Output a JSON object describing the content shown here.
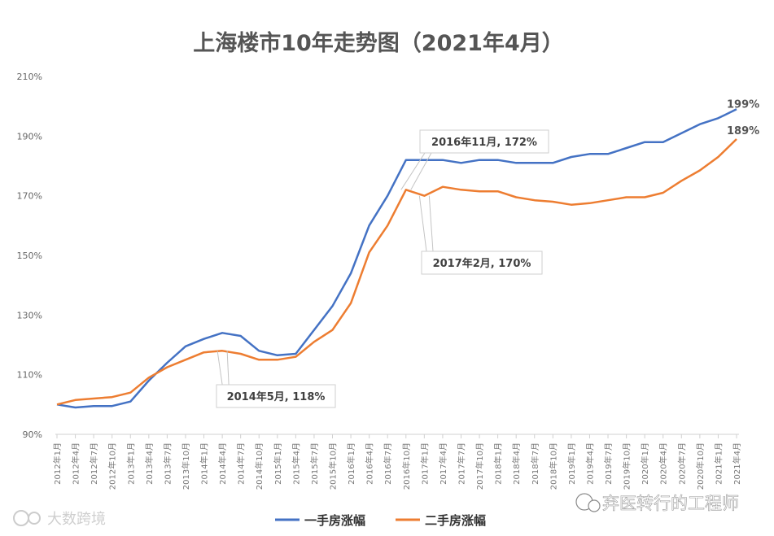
{
  "chart_data": {
    "type": "line",
    "title": "上海楼市10年走势图（2021年4月）",
    "ylim": [
      90,
      210
    ],
    "yticks": [
      "90%",
      "110%",
      "130%",
      "150%",
      "170%",
      "190%",
      "210%"
    ],
    "ytick_values": [
      90,
      110,
      130,
      150,
      170,
      190,
      210
    ],
    "x": [
      "2012年1月",
      "2012年4月",
      "2012年7月",
      "2012年10月",
      "2013年1月",
      "2013年4月",
      "2013年7月",
      "2013年10月",
      "2014年1月",
      "2014年4月",
      "2014年7月",
      "2014年10月",
      "2015年1月",
      "2015年4月",
      "2015年7月",
      "2015年10月",
      "2016年1月",
      "2016年4月",
      "2016年7月",
      "2016年10月",
      "2017年1月",
      "2017年4月",
      "2017年7月",
      "2017年10月",
      "2018年1月",
      "2018年4月",
      "2018年7月",
      "2018年10月",
      "2019年1月",
      "2019年4月",
      "2019年7月",
      "2019年10月",
      "2020年1月",
      "2020年4月",
      "2020年7月",
      "2020年10月",
      "2021年1月",
      "2021年4月"
    ],
    "grid": false,
    "legend_position": "bottom",
    "series": [
      {
        "name": "一手房涨幅",
        "color": "#4472c4",
        "values": [
          100,
          99,
          99.5,
          99.5,
          101,
          108,
          114,
          119.5,
          122,
          124,
          123,
          118,
          116.5,
          117,
          125,
          133,
          144,
          160,
          170,
          182,
          182,
          182,
          181,
          182,
          182,
          181,
          181,
          181,
          183,
          184,
          184,
          186,
          188,
          188,
          191,
          194,
          196,
          199
        ]
      },
      {
        "name": "二手房涨幅",
        "color": "#ed7d31",
        "values": [
          100,
          101.5,
          102,
          102.5,
          104,
          109,
          112.5,
          115,
          117.5,
          118,
          117,
          115,
          115,
          116,
          121,
          125,
          134,
          151,
          160,
          172,
          170,
          173,
          172,
          171.5,
          171.5,
          169.5,
          168.5,
          168,
          167,
          167.5,
          168.5,
          169.5,
          169.5,
          171,
          175,
          178.5,
          183,
          189
        ]
      }
    ],
    "end_labels": [
      "199%",
      "189%"
    ],
    "annotations": [
      {
        "text": "2016年11月, 172%",
        "series": 1,
        "index": 19
      },
      {
        "text": "2017年2月, 170%",
        "series": 1,
        "index": 20
      },
      {
        "text": "2014年5月, 118%",
        "series": 1,
        "index": 9
      }
    ]
  },
  "watermark": {
    "left_text": "大数跨境",
    "right_text": "弃医转行的工程师"
  }
}
